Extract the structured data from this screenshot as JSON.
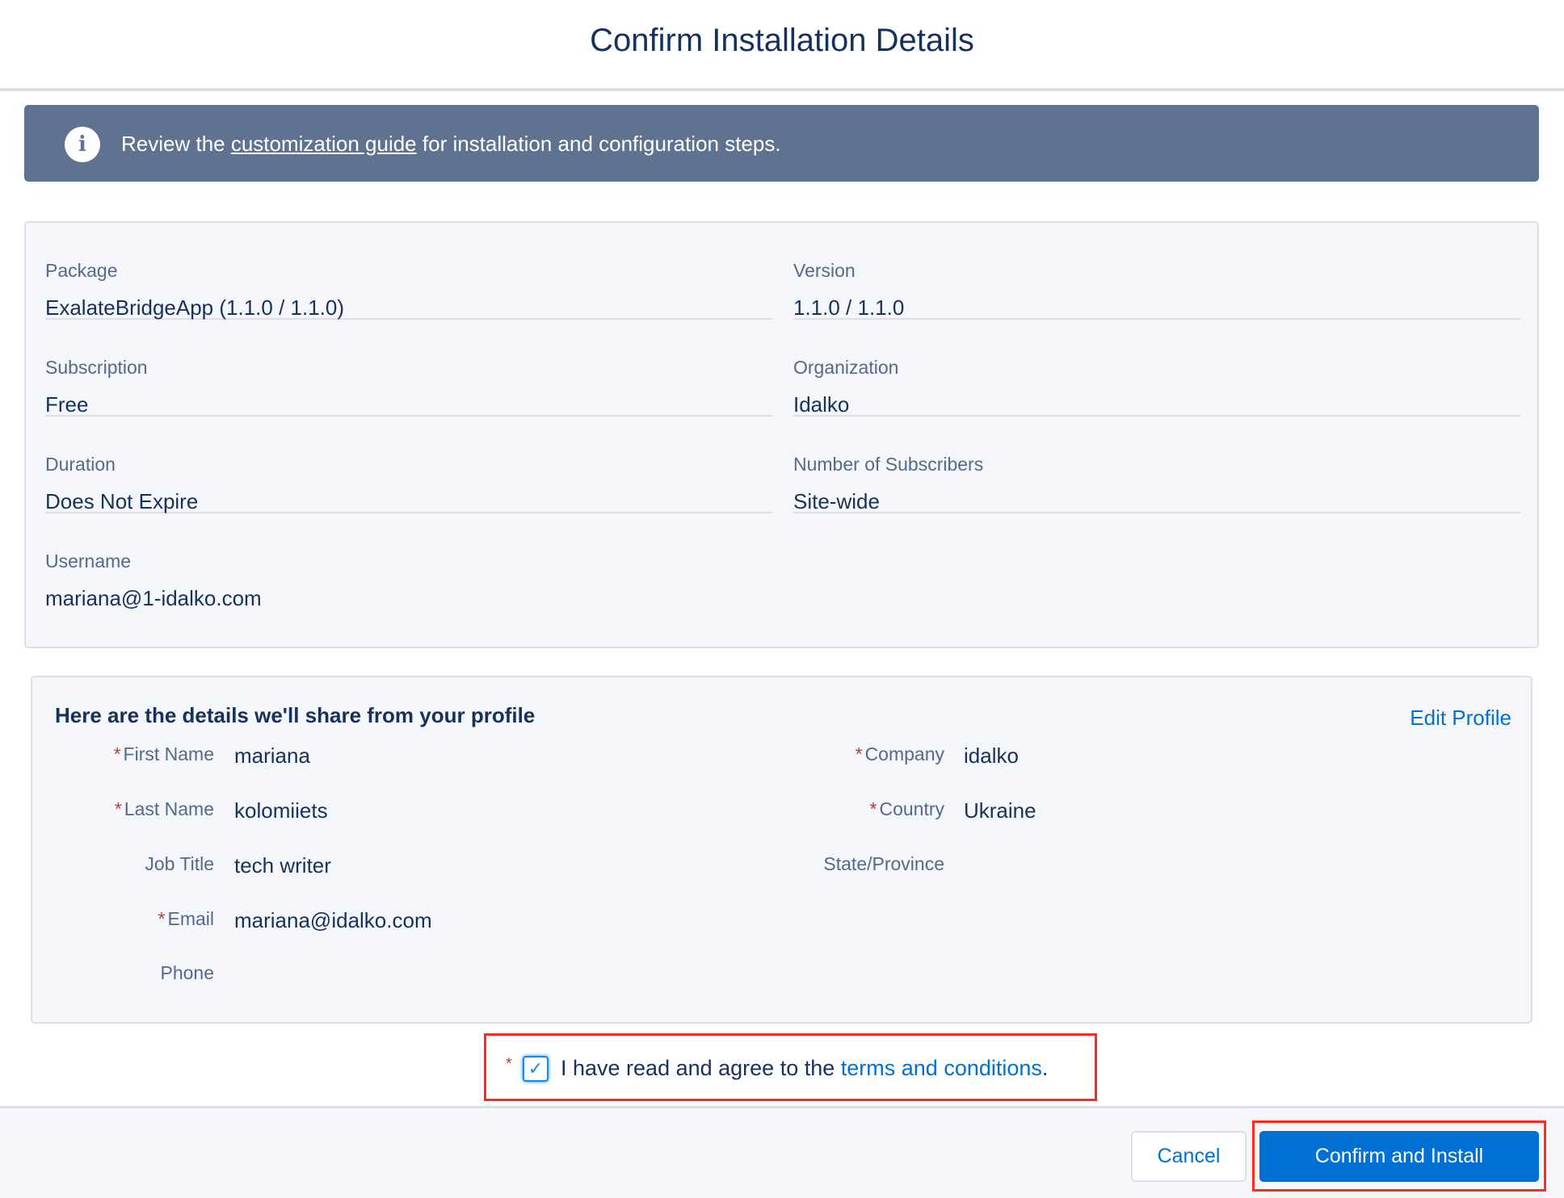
{
  "header": {
    "title": "Confirm Installation Details"
  },
  "banner": {
    "icon": "info-icon",
    "prefix": "Review the ",
    "link": "customization guide",
    "suffix": " for installation and configuration steps."
  },
  "details": [
    {
      "label": "Package",
      "value": "ExalateBridgeApp (1.1.0 / 1.1.0)"
    },
    {
      "label": "Version",
      "value": "1.1.0 / 1.1.0"
    },
    {
      "label": "Subscription",
      "value": "Free"
    },
    {
      "label": "Organization",
      "value": "Idalko"
    },
    {
      "label": "Duration",
      "value": "Does Not Expire"
    },
    {
      "label": "Number of Subscribers",
      "value": "Site-wide"
    },
    {
      "label": "Username",
      "value": "mariana@1-idalko.com"
    }
  ],
  "profile": {
    "heading": "Here are the details we'll share from your profile",
    "edit_label": "Edit Profile",
    "left": [
      {
        "label": "First Name",
        "value": "mariana",
        "required": true
      },
      {
        "label": "Last Name",
        "value": "kolomiiets",
        "required": true
      },
      {
        "label": "Job Title",
        "value": "tech writer",
        "required": false
      },
      {
        "label": "Email",
        "value": "mariana@idalko.com",
        "required": true
      },
      {
        "label": "Phone",
        "value": "",
        "required": false
      }
    ],
    "right": [
      {
        "label": "Company",
        "value": "idalko",
        "required": true
      },
      {
        "label": "Country",
        "value": "Ukraine",
        "required": true
      },
      {
        "label": "State/Province",
        "value": "",
        "required": false
      }
    ],
    "required_mark": "*"
  },
  "consent": {
    "checked": true,
    "required_mark": "*",
    "prefix": "I have read and agree to the ",
    "link": "terms and conditions",
    "suffix": "."
  },
  "footer": {
    "cancel": "Cancel",
    "confirm": "Confirm and Install"
  },
  "colors": {
    "banner": "#5f7391",
    "primary": "#0070d2",
    "highlight": "#ff2a1f"
  }
}
